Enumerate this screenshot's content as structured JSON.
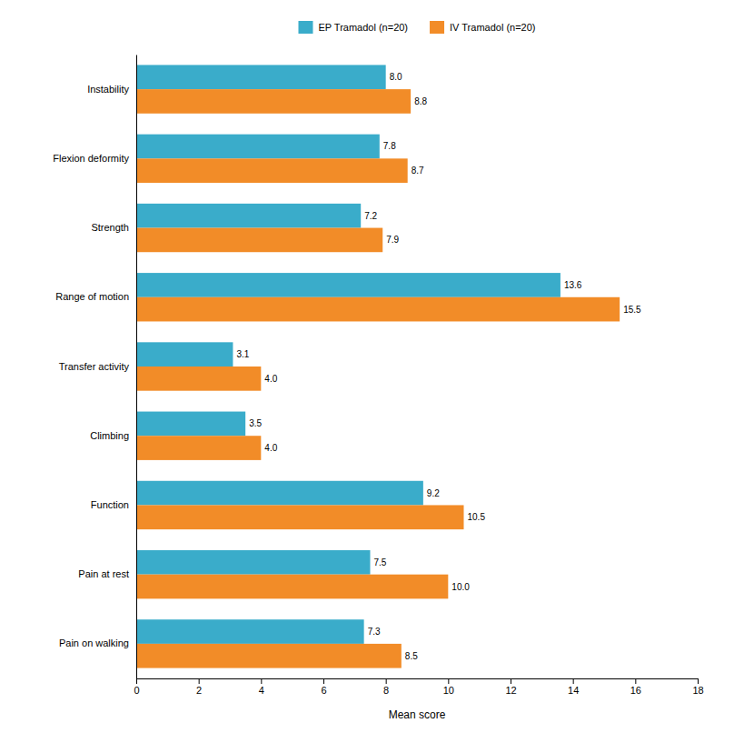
{
  "chart_data": {
    "type": "bar",
    "orientation": "horizontal",
    "xlabel": "Mean score",
    "categories": [
      "Pain on walking",
      "Pain at rest",
      "Function",
      "Climbing",
      "Transfer activity",
      "Range of motion",
      "Strength",
      "Flexion deformity",
      "Instability"
    ],
    "series": [
      {
        "name": "EP Tramadol (n=20)",
        "color": "#3AACCA",
        "values": [
          7.3,
          7.5,
          9.2,
          3.5,
          3.1,
          13.6,
          7.2,
          7.8,
          8.0
        ],
        "value_labels": [
          "7.3",
          "7.5",
          "9.2",
          "3.5",
          "3.1",
          "13.6",
          "7.2",
          "7.8",
          "8.0"
        ]
      },
      {
        "name": "IV Tramadol (n=20)",
        "color": "#F28C28",
        "values": [
          8.5,
          10.0,
          10.5,
          4.0,
          4.0,
          15.5,
          7.9,
          8.7,
          8.8
        ],
        "value_labels": [
          "8.5",
          "10.0",
          "10.5",
          "4.0",
          "4.0",
          "15.5",
          "7.9",
          "8.7",
          "8.8"
        ]
      }
    ],
    "xlim": [
      0,
      18
    ],
    "xticks": [
      0,
      2,
      4,
      6,
      8,
      10,
      12,
      14,
      16,
      18
    ],
    "grid": false,
    "legend": "top",
    "data_labels": true
  }
}
